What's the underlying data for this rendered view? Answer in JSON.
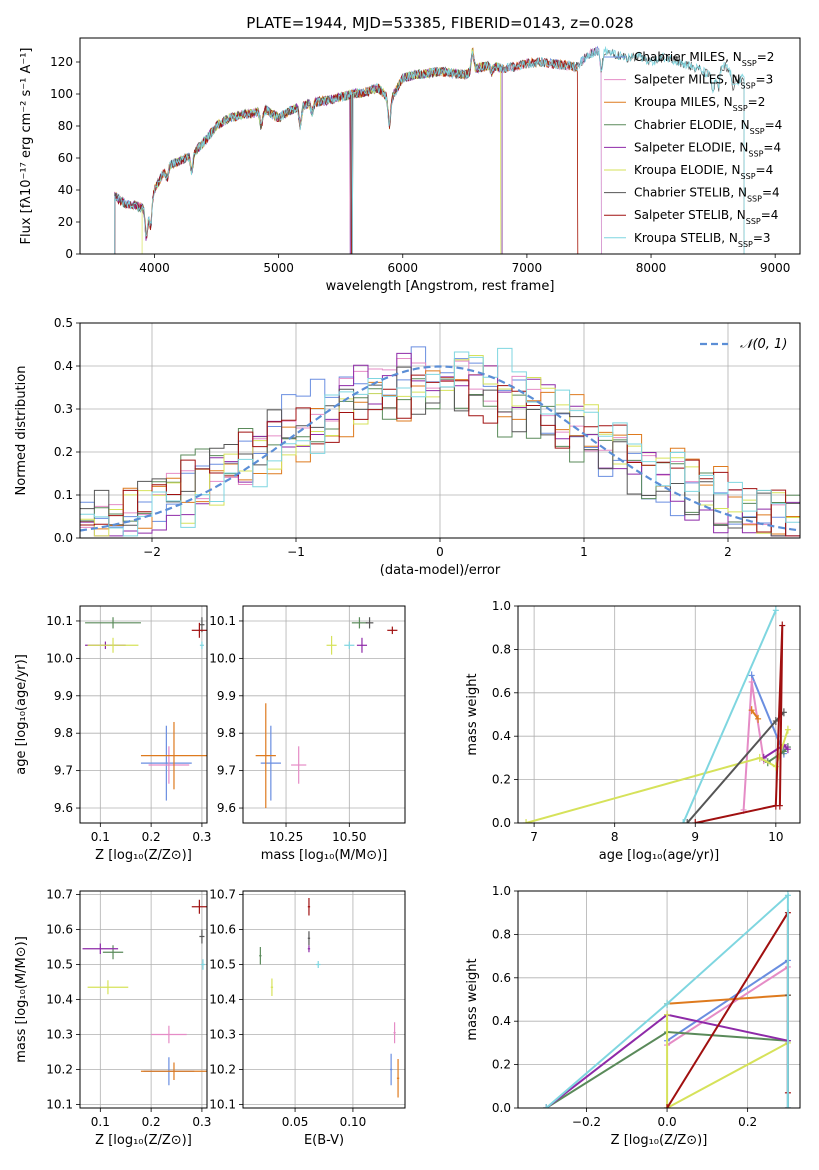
{
  "page_title": "PLATE=1944, MJD=53385, FIBERID=0143, z=0.028",
  "colors": {
    "Chabrier MILES": "#6a8ee0",
    "Salpeter MILES": "#e58cc6",
    "Kroupa MILES": "#de7a1e",
    "Chabrier ELODIE": "#5a8a5a",
    "Salpeter ELODIE": "#8e2aa8",
    "Kroupa ELODIE": "#d6e25a",
    "Chabrier STELIB": "#555555",
    "Salpeter STELIB": "#a01010",
    "Kroupa STELIB": "#7fd6e0",
    "normal": "#5b8ed6",
    "grid": "#b0b0b0"
  },
  "chart_data": [
    {
      "id": "spectrum",
      "type": "line",
      "title": "PLATE=1944, MJD=53385, FIBERID=0143, z=0.028",
      "xlabel": "wavelength [Angstrom, rest frame]",
      "ylabel": "Flux [fλ10⁻¹⁷ erg cm⁻² s⁻¹ A⁻¹]",
      "xlim": [
        3400,
        9200
      ],
      "ylim": [
        0,
        135
      ],
      "xticks": [
        4000,
        5000,
        6000,
        7000,
        8000,
        9000
      ],
      "yticks": [
        0,
        20,
        40,
        60,
        80,
        100,
        120
      ],
      "grid": false,
      "legend_position": "top-right",
      "legend": [
        {
          "model": "Chabrier MILES",
          "nssp": "2"
        },
        {
          "model": "Salpeter MILES",
          "nssp": "3"
        },
        {
          "model": "Kroupa MILES",
          "nssp": "2"
        },
        {
          "model": "Chabrier ELODIE",
          "nssp": "4"
        },
        {
          "model": "Salpeter ELODIE",
          "nssp": "4"
        },
        {
          "model": "Kroupa ELODIE",
          "nssp": "4"
        },
        {
          "model": "Chabrier STELIB",
          "nssp": "4"
        },
        {
          "model": "Salpeter STELIB",
          "nssp": "4"
        },
        {
          "model": "Kroupa STELIB",
          "nssp": "3"
        }
      ],
      "x": [
        3680,
        3750,
        3850,
        3950,
        4000,
        4100,
        4200,
        4300,
        4400,
        4500,
        4600,
        4700,
        4800,
        4900,
        5000,
        5100,
        5200,
        5300,
        5400,
        5500,
        5600,
        5700,
        5800,
        5900,
        6000,
        6100,
        6200,
        6300,
        6400,
        6500,
        6600,
        6700,
        6800,
        6900,
        7000,
        7100,
        7200,
        7300,
        7400,
        7500,
        7600,
        7700,
        7800,
        7900,
        8000,
        8100,
        8200,
        8300,
        8400,
        8500,
        8600,
        8700,
        8800
      ],
      "y": [
        36,
        32,
        30,
        28,
        40,
        55,
        58,
        62,
        70,
        80,
        85,
        87,
        88,
        90,
        85,
        90,
        93,
        95,
        96,
        98,
        100,
        101,
        104,
        96,
        110,
        112,
        113,
        114,
        113,
        112,
        116,
        118,
        116,
        117,
        119,
        120,
        119,
        118,
        117,
        125,
        128,
        125,
        122,
        124,
        120,
        123,
        121,
        118,
        115,
        110,
        118,
        108,
        112
      ],
      "model_ranges": {
        "Chabrier MILES": [
          3680,
          7600
        ],
        "Salpeter MILES": [
          3680,
          7600
        ],
        "Kroupa MILES": [
          3680,
          7410
        ],
        "Chabrier ELODIE": [
          3680,
          6800
        ],
        "Salpeter ELODIE": [
          3680,
          6800
        ],
        "Kroupa ELODIE": [
          3900,
          6790
        ],
        "Chabrier STELIB": [
          3680,
          8750
        ],
        "Salpeter STELIB": [
          3680,
          7410
        ],
        "Kroupa STELIB": [
          3680,
          8750
        ]
      }
    },
    {
      "id": "residuals",
      "type": "histogram",
      "xlabel": "(data-model)/error",
      "ylabel": "Normed distribution",
      "xlim": [
        -2.5,
        2.5
      ],
      "ylim": [
        0,
        0.5
      ],
      "xticks": [
        -2,
        -1,
        0,
        1,
        2
      ],
      "yticks": [
        0.0,
        0.1,
        0.2,
        0.3,
        0.4,
        0.5
      ],
      "grid": true,
      "legend_position": "top-right",
      "legend_label": "𝒩(0, 1)",
      "bin_width": 0.1,
      "reference_curve": "normal(0, 1)"
    },
    {
      "id": "age-vs-z",
      "type": "scatter",
      "xlabel": "Z [log₁₀(Z/Z⊙)]",
      "ylabel": "age  [log₁₀(age/yr)]",
      "xlim": [
        0.06,
        0.31
      ],
      "ylim": [
        9.56,
        10.14
      ],
      "xticks": [
        0.1,
        0.2,
        0.3
      ],
      "yticks": [
        9.6,
        9.7,
        9.8,
        9.9,
        10.0,
        10.1
      ],
      "grid": true,
      "points": [
        {
          "model": "Chabrier MILES",
          "x": 0.23,
          "y": 9.72,
          "xerr": 0.05,
          "yerr": 0.1
        },
        {
          "model": "Salpeter MILES",
          "x": 0.235,
          "y": 9.715,
          "xerr": 0.04,
          "yerr": 0.05
        },
        {
          "model": "Kroupa MILES",
          "x": 0.245,
          "y": 9.74,
          "xerr": 0.065,
          "yerr": 0.09
        },
        {
          "model": "Chabrier ELODIE",
          "x": 0.125,
          "y": 10.095,
          "xerr": 0.055,
          "yerr": 0.015
        },
        {
          "model": "Salpeter ELODIE",
          "x": 0.11,
          "y": 10.035,
          "xerr": 0.04,
          "yerr": 0.01
        },
        {
          "model": "Kroupa ELODIE",
          "x": 0.125,
          "y": 10.035,
          "xerr": 0.05,
          "yerr": 0.02
        },
        {
          "model": "Chabrier STELIB",
          "x": 0.3,
          "y": 10.09,
          "xerr": 0.005,
          "yerr": 0.02
        },
        {
          "model": "Salpeter STELIB",
          "x": 0.295,
          "y": 10.075,
          "xerr": 0.015,
          "yerr": 0.02
        },
        {
          "model": "Kroupa STELIB",
          "x": 0.3,
          "y": 10.035,
          "xerr": 0.004,
          "yerr": 0.01
        }
      ]
    },
    {
      "id": "age-vs-mass",
      "type": "scatter",
      "xlabel": "mass [log₁₀(M/M⊙)]",
      "ylabel": "",
      "xlim": [
        10.08,
        10.72
      ],
      "ylim": [
        9.56,
        10.14
      ],
      "xticks": [
        10.25,
        10.5
      ],
      "xticklabels": [
        "10.25",
        "10.50"
      ],
      "yticks": [
        9.6,
        9.7,
        9.8,
        9.9,
        10.0,
        10.1
      ],
      "grid": true,
      "points": [
        {
          "model": "Chabrier MILES",
          "x": 10.19,
          "y": 9.72,
          "xerr": 0.04,
          "yerr": 0.1
        },
        {
          "model": "Salpeter MILES",
          "x": 10.3,
          "y": 9.715,
          "xerr": 0.03,
          "yerr": 0.05
        },
        {
          "model": "Kroupa MILES",
          "x": 10.17,
          "y": 9.74,
          "xerr": 0.04,
          "yerr": 0.14
        },
        {
          "model": "Chabrier ELODIE",
          "x": 10.54,
          "y": 10.095,
          "xerr": 0.03,
          "yerr": 0.015
        },
        {
          "model": "Salpeter ELODIE",
          "x": 10.55,
          "y": 10.035,
          "xerr": 0.02,
          "yerr": 0.02
        },
        {
          "model": "Kroupa ELODIE",
          "x": 10.43,
          "y": 10.035,
          "xerr": 0.02,
          "yerr": 0.025
        },
        {
          "model": "Chabrier STELIB",
          "x": 10.58,
          "y": 10.095,
          "xerr": 0.015,
          "yerr": 0.015
        },
        {
          "model": "Salpeter STELIB",
          "x": 10.67,
          "y": 10.075,
          "xerr": 0.02,
          "yerr": 0.01
        },
        {
          "model": "Kroupa STELIB",
          "x": 10.5,
          "y": 10.035,
          "xerr": 0.02,
          "yerr": 0.01
        }
      ]
    },
    {
      "id": "weight-vs-age",
      "type": "line",
      "xlabel": "age  [log₁₀(age/yr)]",
      "ylabel": "mass weight",
      "xlim": [
        6.8,
        10.3
      ],
      "ylim": [
        0,
        1
      ],
      "xticks": [
        7,
        8,
        9,
        10
      ],
      "yticks": [
        0.0,
        0.2,
        0.4,
        0.6,
        0.8,
        1.0
      ],
      "grid": true,
      "series": [
        {
          "model": "Chabrier MILES",
          "x": [
            9.7,
            10.1
          ],
          "y": [
            0.68,
            0.32
          ]
        },
        {
          "model": "Salpeter MILES",
          "x": [
            9.6,
            9.7,
            9.85
          ],
          "y": [
            0.06,
            0.65,
            0.29
          ]
        },
        {
          "model": "Kroupa MILES",
          "x": [
            9.7,
            9.78
          ],
          "y": [
            0.52,
            0.48
          ]
        },
        {
          "model": "Chabrier ELODIE",
          "x": [
            9.9,
            10.1,
            10.15
          ],
          "y": [
            0.28,
            0.33,
            0.35
          ]
        },
        {
          "model": "Salpeter ELODIE",
          "x": [
            9.85,
            10.1,
            10.15
          ],
          "y": [
            0.3,
            0.36,
            0.34
          ]
        },
        {
          "model": "Kroupa ELODIE",
          "x": [
            6.9,
            9.8,
            10.0,
            10.15
          ],
          "y": [
            0.0,
            0.3,
            0.26,
            0.43
          ]
        },
        {
          "model": "Chabrier STELIB",
          "x": [
            8.9,
            10.0,
            10.1
          ],
          "y": [
            0.0,
            0.47,
            0.51
          ]
        },
        {
          "model": "Salpeter STELIB",
          "x": [
            9.0,
            10.0,
            10.08,
            10.05
          ],
          "y": [
            0.0,
            0.08,
            0.91,
            0.08
          ]
        },
        {
          "model": "Kroupa STELIB",
          "x": [
            8.85,
            10.0
          ],
          "y": [
            0.0,
            0.98
          ]
        }
      ]
    },
    {
      "id": "mass-vs-z",
      "type": "scatter",
      "xlabel": "Z [log₁₀(Z/Z⊙)]",
      "ylabel": "mass [log₁₀(M/M⊙)]",
      "xlim": [
        0.06,
        0.31
      ],
      "ylim": [
        10.09,
        10.71
      ],
      "xticks": [
        0.1,
        0.2,
        0.3
      ],
      "yticks": [
        10.1,
        10.2,
        10.3,
        10.4,
        10.5,
        10.6,
        10.7
      ],
      "grid": true,
      "points": [
        {
          "model": "Chabrier MILES",
          "x": 0.235,
          "y": 10.195,
          "xerr": 0.05,
          "yerr": 0.04
        },
        {
          "model": "Salpeter MILES",
          "x": 0.235,
          "y": 10.3,
          "xerr": 0.035,
          "yerr": 0.025
        },
        {
          "model": "Kroupa MILES",
          "x": 0.245,
          "y": 10.195,
          "xerr": 0.065,
          "yerr": 0.025
        },
        {
          "model": "Chabrier ELODIE",
          "x": 0.125,
          "y": 10.535,
          "xerr": 0.02,
          "yerr": 0.02
        },
        {
          "model": "Salpeter ELODIE",
          "x": 0.1,
          "y": 10.545,
          "xerr": 0.035,
          "yerr": 0.015
        },
        {
          "model": "Kroupa ELODIE",
          "x": 0.115,
          "y": 10.435,
          "xerr": 0.04,
          "yerr": 0.02
        },
        {
          "model": "Chabrier STELIB",
          "x": 0.3,
          "y": 10.58,
          "xerr": 0.005,
          "yerr": 0.02
        },
        {
          "model": "Salpeter STELIB",
          "x": 0.295,
          "y": 10.665,
          "xerr": 0.015,
          "yerr": 0.02
        },
        {
          "model": "Kroupa STELIB",
          "x": 0.302,
          "y": 10.5,
          "xerr": 0.004,
          "yerr": 0.015
        }
      ]
    },
    {
      "id": "mass-vs-ebv",
      "type": "scatter",
      "xlabel": "E(B-V)",
      "ylabel": "",
      "xlim": [
        0.005,
        0.145
      ],
      "ylim": [
        10.09,
        10.71
      ],
      "xticks": [
        0.05,
        0.1
      ],
      "xticklabels": [
        "0.05",
        "0.10"
      ],
      "yticks": [
        10.1,
        10.2,
        10.3,
        10.4,
        10.5,
        10.6,
        10.7
      ],
      "grid": true,
      "points": [
        {
          "model": "Chabrier MILES",
          "x": 0.133,
          "y": 10.2,
          "xerr": 0.001,
          "yerr": 0.045
        },
        {
          "model": "Salpeter MILES",
          "x": 0.136,
          "y": 10.305,
          "xerr": 0.001,
          "yerr": 0.03
        },
        {
          "model": "Kroupa MILES",
          "x": 0.139,
          "y": 10.175,
          "xerr": 0.001,
          "yerr": 0.055
        },
        {
          "model": "Chabrier ELODIE",
          "x": 0.02,
          "y": 10.525,
          "xerr": 0.001,
          "yerr": 0.025
        },
        {
          "model": "Salpeter ELODIE",
          "x": 0.062,
          "y": 10.545,
          "xerr": 0.001,
          "yerr": 0.01
        },
        {
          "model": "Kroupa ELODIE",
          "x": 0.03,
          "y": 10.435,
          "xerr": 0.001,
          "yerr": 0.025
        },
        {
          "model": "Chabrier STELIB",
          "x": 0.062,
          "y": 10.575,
          "xerr": 0.001,
          "yerr": 0.02
        },
        {
          "model": "Salpeter STELIB",
          "x": 0.062,
          "y": 10.665,
          "xerr": 0.001,
          "yerr": 0.025
        },
        {
          "model": "Kroupa STELIB",
          "x": 0.07,
          "y": 10.5,
          "xerr": 0.002,
          "yerr": 0.01
        }
      ]
    },
    {
      "id": "weight-vs-z",
      "type": "line",
      "xlabel": "Z [log₁₀(Z/Z⊙)]",
      "ylabel": "mass weight",
      "xlim": [
        -0.37,
        0.33
      ],
      "ylim": [
        0,
        1
      ],
      "xticks": [
        -0.2,
        0.0,
        0.2
      ],
      "xticklabels": [
        "−0.2",
        "0.0",
        "0.2"
      ],
      "yticks": [
        0.0,
        0.2,
        0.4,
        0.6,
        0.8,
        1.0
      ],
      "grid": true,
      "series": [
        {
          "model": "Chabrier MILES",
          "x": [
            0.0,
            0.3,
            0.3
          ],
          "y": [
            0.31,
            0.68,
            0.0
          ]
        },
        {
          "model": "Salpeter MILES",
          "x": [
            0.0,
            0.3
          ],
          "y": [
            0.29,
            0.65
          ]
        },
        {
          "model": "Kroupa MILES",
          "x": [
            0.0,
            0.3
          ],
          "y": [
            0.48,
            0.52
          ]
        },
        {
          "model": "Chabrier ELODIE",
          "x": [
            -0.3,
            0.0,
            0.3
          ],
          "y": [
            0.0,
            0.35,
            0.31
          ]
        },
        {
          "model": "Salpeter ELODIE",
          "x": [
            -0.3,
            0.0,
            0.3
          ],
          "y": [
            0.0,
            0.43,
            0.31
          ]
        },
        {
          "model": "Kroupa ELODIE",
          "x": [
            0.0,
            0.0,
            0.3
          ],
          "y": [
            0.43,
            0.0,
            0.3
          ]
        },
        {
          "model": "Chabrier STELIB",
          "x": [
            0.3,
            0.3
          ],
          "y": [
            0.0,
            0.52
          ]
        },
        {
          "model": "Salpeter STELIB",
          "x": [
            0.0,
            0.3,
            0.3
          ],
          "y": [
            0.0,
            0.9,
            0.07
          ]
        },
        {
          "model": "Kroupa STELIB",
          "x": [
            -0.3,
            0.0,
            0.3,
            0.3
          ],
          "y": [
            0.0,
            0.48,
            0.98,
            0.0
          ]
        }
      ]
    }
  ]
}
